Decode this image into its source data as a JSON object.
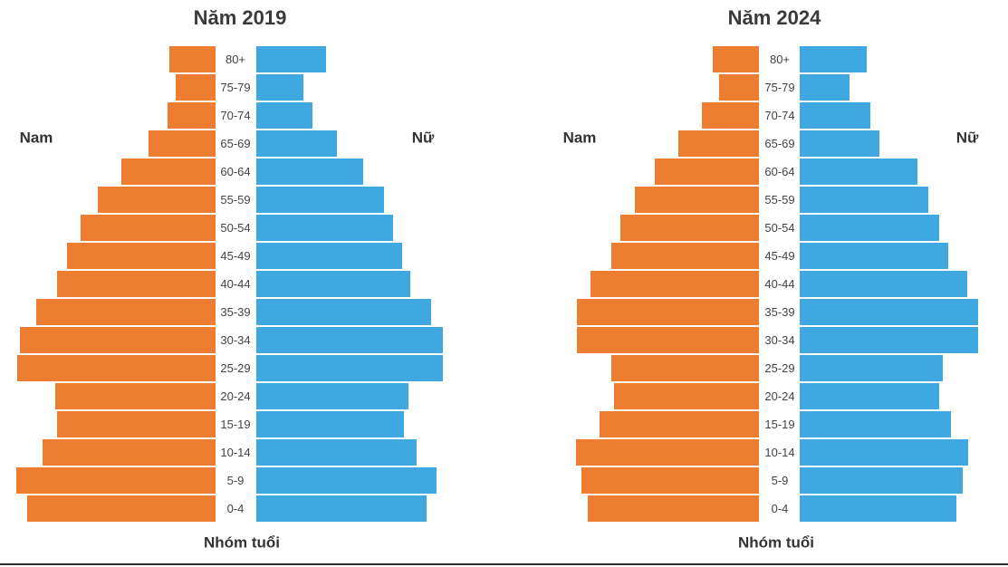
{
  "chart_data": [
    {
      "type": "bar",
      "orientation": "population-pyramid",
      "title": "Năm 2019",
      "xlabel": "Nhóm tuổi",
      "left_label": "Nam",
      "right_label": "Nữ",
      "categories": [
        "80+",
        "75-79",
        "70-74",
        "65-69",
        "60-64",
        "55-59",
        "50-54",
        "45-49",
        "40-44",
        "35-39",
        "30-34",
        "25-29",
        "20-24",
        "15-19",
        "10-14",
        "5-9",
        "0-4"
      ],
      "series": [
        {
          "name": "Nam",
          "color": "#ED7D31",
          "values": [
            51,
            44,
            53,
            74,
            104,
            130,
            149,
            164,
            175,
            198,
            216,
            219,
            177,
            175,
            191,
            220,
            208
          ]
        },
        {
          "name": "Nữ",
          "color": "#3FA8E0",
          "values": [
            77,
            52,
            62,
            89,
            118,
            141,
            151,
            161,
            170,
            193,
            206,
            206,
            168,
            163,
            177,
            199,
            188
          ]
        }
      ]
    },
    {
      "type": "bar",
      "orientation": "population-pyramid",
      "title": "Năm 2024",
      "xlabel": "Nhóm tuổi",
      "left_label": "Nam",
      "right_label": "Nữ",
      "categories": [
        "80+",
        "75-79",
        "70-74",
        "65-69",
        "60-64",
        "55-59",
        "50-54",
        "45-49",
        "40-44",
        "35-39",
        "30-34",
        "25-29",
        "20-24",
        "15-19",
        "10-14",
        "5-9",
        "0-4"
      ],
      "series": [
        {
          "name": "Nam",
          "color": "#ED7D31",
          "values": [
            51,
            44,
            63,
            89,
            115,
            137,
            153,
            163,
            186,
            201,
            201,
            163,
            160,
            176,
            202,
            196,
            189
          ]
        },
        {
          "name": "Nữ",
          "color": "#3FA8E0",
          "values": [
            74,
            55,
            78,
            88,
            130,
            142,
            154,
            164,
            185,
            197,
            197,
            158,
            154,
            167,
            186,
            180,
            173
          ]
        }
      ]
    }
  ]
}
